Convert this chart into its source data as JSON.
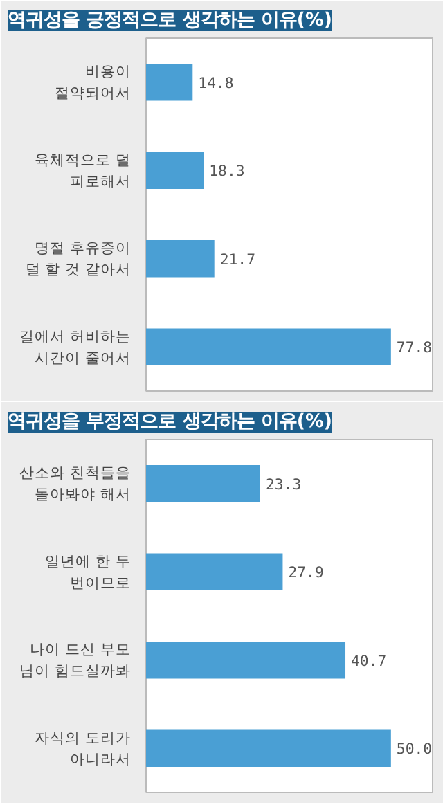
{
  "chart_data": [
    {
      "type": "bar",
      "orientation": "horizontal",
      "title": "역귀성을 긍정적으로 생각하는 이유(%)",
      "categories": [
        "비용이\n절약되어서",
        "육체적으로 덜\n피로해서",
        "명절 후유증이\n덜 할 것 같아서",
        "길에서 허비하는\n시간이 줄어서"
      ],
      "values": [
        14.8,
        18.3,
        21.7,
        77.8
      ],
      "color": "#4a9fd4",
      "data_labels": true
    },
    {
      "type": "bar",
      "orientation": "horizontal",
      "title": "역귀성을 부정적으로 생각하는 이유(%)",
      "categories": [
        "산소와 친척들을\n돌아봐야 해서",
        "일년에 한 두\n번이므로",
        "나이 드신 부모\n님이 힘드실까봐",
        "자식의 도리가\n아니라서"
      ],
      "values": [
        23.3,
        27.9,
        40.7,
        50.0
      ],
      "value_labels": [
        "23.3",
        "27.9",
        "40.7",
        "50.0"
      ],
      "color": "#4a9fd4"
    }
  ]
}
